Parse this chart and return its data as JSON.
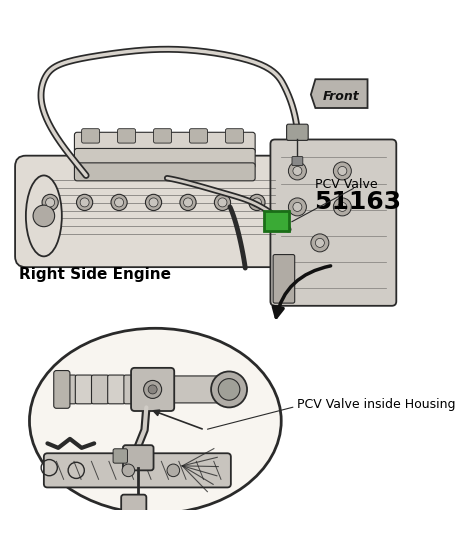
{
  "bg_color": "#ffffff",
  "fig_width": 4.74,
  "fig_height": 5.37,
  "dpi": 100,
  "label_pcv_valve": "PCV Valve",
  "label_pcv_number": "51163",
  "label_right_side": "Right Side Engine",
  "label_front": "Front",
  "label_pcv_housing": "PCV Valve inside Housing",
  "text_color": "#000000",
  "line_color": "#2a2a2a",
  "green_color": "#3aaa35",
  "gray_fill": "#c8c4be",
  "light_gray": "#e0dbd4",
  "mid_gray": "#b0aba4",
  "dark_gray": "#7a7570"
}
